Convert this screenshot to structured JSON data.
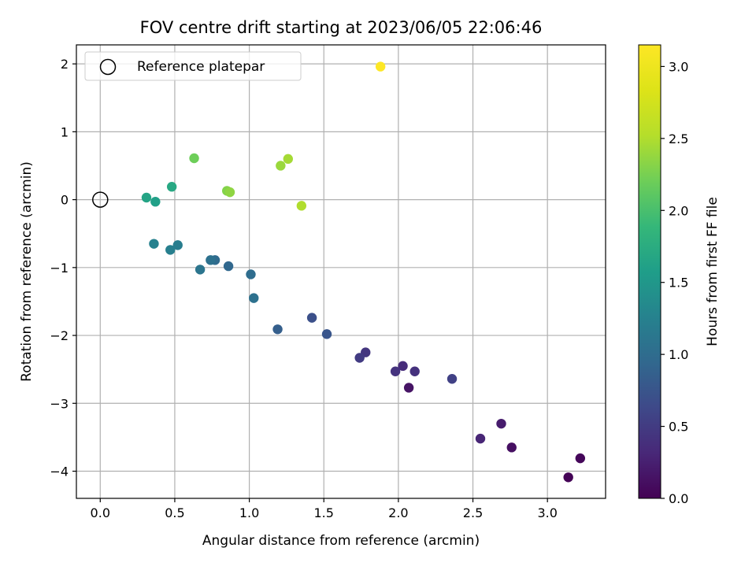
{
  "chart_data": {
    "type": "scatter",
    "title": "FOV centre drift starting at 2023/06/05 22:06:46",
    "xlabel": "Angular distance from reference (arcmin)",
    "ylabel": "Rotation from reference (arcmin)",
    "xlim": [
      -0.16,
      3.39
    ],
    "ylim": [
      -4.4,
      2.28
    ],
    "xticks": [
      0.0,
      0.5,
      1.0,
      1.5,
      2.0,
      2.5,
      3.0
    ],
    "xtick_labels": [
      "0.0",
      "0.5",
      "1.0",
      "1.5",
      "2.0",
      "2.5",
      "3.0"
    ],
    "yticks": [
      2,
      1,
      0,
      -1,
      -2,
      -3,
      -4
    ],
    "ytick_labels": [
      "2",
      "1",
      "0",
      "−1",
      "−2",
      "−3",
      "−4"
    ],
    "grid": true,
    "legend": {
      "placement": "top-left",
      "entries": [
        {
          "label": "Reference platepar",
          "marker": "open-circle",
          "color": "#000000"
        }
      ]
    },
    "reference_point": {
      "x": 0.0,
      "y": 0.0
    },
    "colorbar": {
      "label": "Hours from first FF file",
      "colormap": "viridis",
      "range": [
        0.0,
        3.15
      ],
      "ticks": [
        0.0,
        0.5,
        1.0,
        1.5,
        2.0,
        2.5,
        3.0
      ],
      "tick_labels": [
        "0.0",
        "0.5",
        "1.0",
        "1.5",
        "2.0",
        "2.5",
        "3.0"
      ]
    },
    "points": [
      {
        "x": 3.14,
        "y": -4.09,
        "c": 0.02
      },
      {
        "x": 3.22,
        "y": -3.81,
        "c": 0.05
      },
      {
        "x": 2.76,
        "y": -3.65,
        "c": 0.12
      },
      {
        "x": 2.69,
        "y": -3.3,
        "c": 0.22
      },
      {
        "x": 2.55,
        "y": -3.52,
        "c": 0.3
      },
      {
        "x": 2.07,
        "y": -2.77,
        "c": 0.15
      },
      {
        "x": 2.11,
        "y": -2.53,
        "c": 0.4
      },
      {
        "x": 2.03,
        "y": -2.45,
        "c": 0.35
      },
      {
        "x": 1.98,
        "y": -2.53,
        "c": 0.42
      },
      {
        "x": 2.36,
        "y": -2.64,
        "c": 0.55
      },
      {
        "x": 1.78,
        "y": -2.25,
        "c": 0.45
      },
      {
        "x": 1.74,
        "y": -2.33,
        "c": 0.5
      },
      {
        "x": 1.52,
        "y": -1.98,
        "c": 0.75
      },
      {
        "x": 1.42,
        "y": -1.74,
        "c": 0.7
      },
      {
        "x": 1.19,
        "y": -1.91,
        "c": 0.85
      },
      {
        "x": 1.03,
        "y": -1.45,
        "c": 1.05
      },
      {
        "x": 1.01,
        "y": -1.1,
        "c": 1.0
      },
      {
        "x": 0.86,
        "y": -0.98,
        "c": 0.95
      },
      {
        "x": 0.77,
        "y": -0.89,
        "c": 0.98
      },
      {
        "x": 0.74,
        "y": -0.89,
        "c": 1.05
      },
      {
        "x": 0.67,
        "y": -1.03,
        "c": 1.1
      },
      {
        "x": 0.52,
        "y": -0.67,
        "c": 1.2
      },
      {
        "x": 0.47,
        "y": -0.74,
        "c": 1.22
      },
      {
        "x": 0.36,
        "y": -0.65,
        "c": 1.25
      },
      {
        "x": 0.37,
        "y": -0.03,
        "c": 1.6
      },
      {
        "x": 0.31,
        "y": 0.03,
        "c": 1.65
      },
      {
        "x": 0.48,
        "y": 0.19,
        "c": 1.7
      },
      {
        "x": 0.63,
        "y": 0.61,
        "c": 2.2
      },
      {
        "x": 0.85,
        "y": 0.13,
        "c": 2.3
      },
      {
        "x": 0.87,
        "y": 0.11,
        "c": 2.35
      },
      {
        "x": 1.21,
        "y": 0.5,
        "c": 2.4
      },
      {
        "x": 1.26,
        "y": 0.6,
        "c": 2.45
      },
      {
        "x": 1.35,
        "y": -0.09,
        "c": 2.5
      },
      {
        "x": 1.88,
        "y": 1.96,
        "c": 3.15
      }
    ]
  }
}
